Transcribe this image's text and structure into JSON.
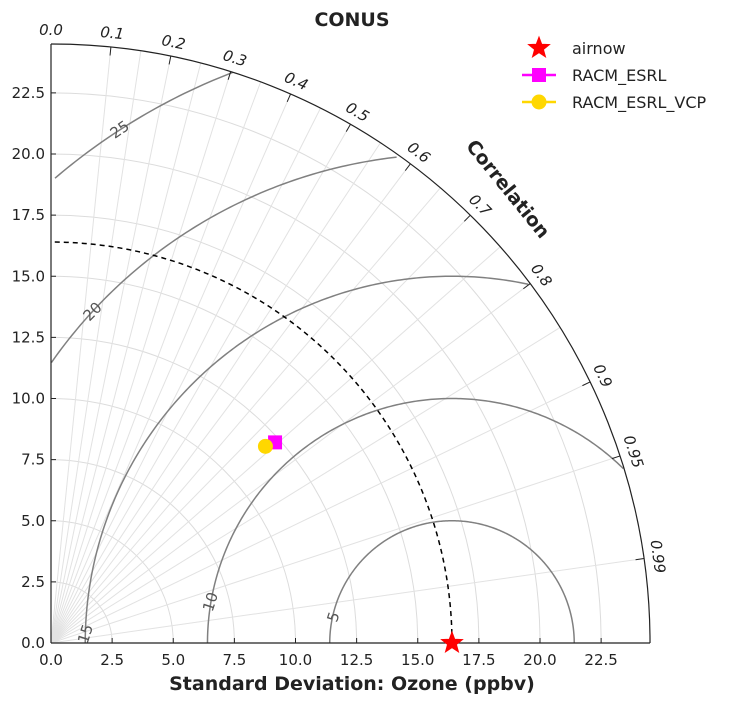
{
  "chart_data": {
    "type": "scatter",
    "subtype": "taylor-diagram",
    "title": "CONUS",
    "xlabel": "Standard Deviation: Ozone (ppbv)",
    "correlation_label": "Correlation",
    "std_range": [
      0,
      24.5
    ],
    "std_ticks": [
      "0.0",
      "2.5",
      "5.0",
      "7.5",
      "10.0",
      "12.5",
      "15.0",
      "17.5",
      "20.0",
      "22.5"
    ],
    "correlation_ticks": [
      "0.0",
      "0.1",
      "0.2",
      "0.3",
      "0.4",
      "0.5",
      "0.6",
      "0.7",
      "0.8",
      "0.9",
      "0.95",
      "0.99"
    ],
    "rms_contours": [
      "5",
      "10",
      "15",
      "20",
      "25"
    ],
    "reference_std": 16.4,
    "grid": true,
    "legend_position": "top-right",
    "series": [
      {
        "name": "airnow",
        "marker": "star",
        "color": "#ff0000",
        "std": 16.4,
        "corr": 1.0
      },
      {
        "name": "RACM_ESRL",
        "marker": "square",
        "color": "#ff00ff",
        "std": 12.3,
        "corr": 0.745
      },
      {
        "name": "RACM_ESRL_VCP",
        "marker": "circle",
        "color": "#ffd700",
        "std": 11.9,
        "corr": 0.737
      }
    ]
  }
}
